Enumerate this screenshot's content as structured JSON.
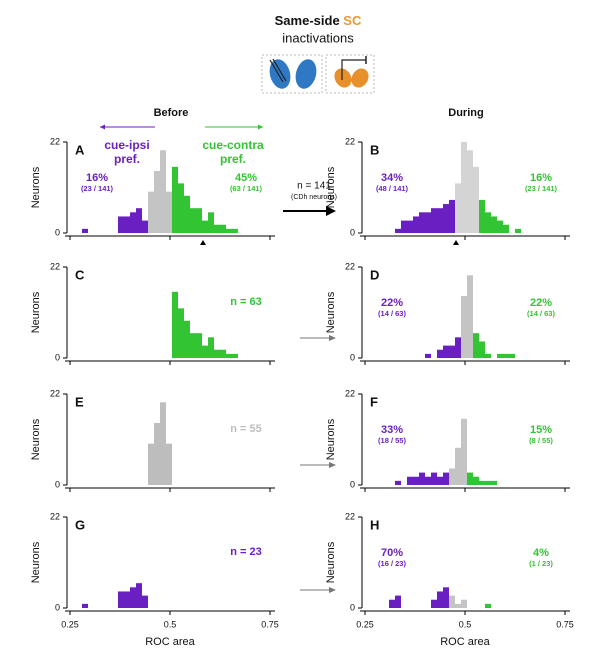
{
  "header": {
    "title": "Same-side ",
    "title_highlight": "SC",
    "subtitle": "inactivations",
    "columns": [
      "Before",
      "During"
    ],
    "arrow_label": "n = 141",
    "arrow_sublabel": "(CDh neurons)"
  },
  "chart_data": [
    {
      "type": "histogram",
      "panel": "A",
      "ylabel": "Neurons",
      "xlim": [
        0.25,
        0.75
      ],
      "ylim": [
        0,
        22
      ],
      "xticks": [
        0.25,
        0.5,
        0.75
      ],
      "yticks": [
        0,
        22
      ],
      "marker": 0.5825,
      "annotations": [
        [
          "cue-ipsi",
          "pref."
        ],
        [
          "cue-contra",
          "pref."
        ]
      ],
      "bins": [
        0.28,
        0.295,
        0.31,
        0.325,
        0.34,
        0.355,
        0.37,
        0.385,
        0.4,
        0.415,
        0.43,
        0.445,
        0.46,
        0.475,
        0.49,
        0.505,
        0.52,
        0.535,
        0.55,
        0.565,
        0.58,
        0.595,
        0.61,
        0.625,
        0.64,
        0.655,
        0.67,
        0.685
      ],
      "series": [
        {
          "color": "#6a1fc2",
          "label": "16%",
          "sublabel": "(23 / 141)",
          "values": [
            1,
            0,
            0,
            0,
            0,
            0,
            4,
            4,
            5,
            6,
            3,
            0,
            0,
            0,
            0,
            0,
            0,
            0,
            0,
            0,
            0,
            0,
            0,
            0,
            0,
            0,
            0
          ]
        },
        {
          "color": "#c4c4c4",
          "values": [
            0,
            0,
            0,
            0,
            0,
            0,
            0,
            0,
            0,
            0,
            0,
            10,
            15,
            20,
            10,
            0,
            0,
            0,
            0,
            0,
            0,
            0,
            0,
            0,
            0,
            0,
            0
          ]
        },
        {
          "color": "#33c433",
          "label": "45%",
          "sublabel": "(63 / 141)",
          "values": [
            0,
            0,
            0,
            0,
            0,
            0,
            0,
            0,
            0,
            0,
            0,
            0,
            0,
            0,
            0,
            16,
            12,
            9,
            6,
            6,
            3,
            5,
            2,
            2,
            1,
            1,
            0
          ]
        }
      ]
    },
    {
      "type": "histogram",
      "panel": "B",
      "ylabel": "Neurons",
      "xlim": [
        0.25,
        0.75
      ],
      "ylim": [
        0,
        22
      ],
      "xticks": [
        0.25,
        0.5,
        0.75
      ],
      "yticks": [
        0,
        22
      ],
      "marker": 0.4775,
      "bins": [
        0.28,
        0.295,
        0.31,
        0.325,
        0.34,
        0.355,
        0.37,
        0.385,
        0.4,
        0.415,
        0.43,
        0.445,
        0.46,
        0.475,
        0.49,
        0.505,
        0.52,
        0.535,
        0.55,
        0.565,
        0.58,
        0.595,
        0.61,
        0.625,
        0.64,
        0.655,
        0.67,
        0.685
      ],
      "series": [
        {
          "color": "#6a1fc2",
          "label": "34%",
          "sublabel": "(48 / 141)",
          "values": [
            0,
            0,
            0,
            1,
            3,
            3,
            4,
            5,
            5,
            6,
            6,
            7,
            8,
            0,
            0,
            0,
            0,
            0,
            0,
            0,
            0,
            0,
            0,
            0,
            0,
            0,
            0
          ]
        },
        {
          "color": "#d4d4d4",
          "values": [
            0,
            0,
            0,
            0,
            0,
            0,
            0,
            0,
            0,
            0,
            0,
            0,
            0,
            12,
            22,
            20,
            16,
            0,
            0,
            0,
            0,
            0,
            0,
            0,
            0,
            0,
            0
          ]
        },
        {
          "color": "#33c433",
          "label": "16%",
          "sublabel": "(23 / 141)",
          "values": [
            0,
            0,
            0,
            0,
            0,
            0,
            0,
            0,
            0,
            0,
            0,
            0,
            0,
            0,
            0,
            0,
            0,
            8,
            5,
            4,
            3,
            2,
            0,
            1,
            0,
            0,
            0
          ]
        }
      ]
    },
    {
      "type": "histogram",
      "panel": "C",
      "ylabel": "Neurons",
      "xlim": [
        0.25,
        0.75
      ],
      "ylim": [
        0,
        22
      ],
      "xticks": [
        0.25,
        0.5,
        0.75
      ],
      "yticks": [
        0,
        22
      ],
      "bins": [
        0.28,
        0.295,
        0.31,
        0.325,
        0.34,
        0.355,
        0.37,
        0.385,
        0.4,
        0.415,
        0.43,
        0.445,
        0.46,
        0.475,
        0.49,
        0.505,
        0.52,
        0.535,
        0.55,
        0.565,
        0.58,
        0.595,
        0.61,
        0.625,
        0.64,
        0.655,
        0.67,
        0.685
      ],
      "series": [
        {
          "color": "#33c433",
          "label": "n = 63",
          "values": [
            0,
            0,
            0,
            0,
            0,
            0,
            0,
            0,
            0,
            0,
            0,
            0,
            0,
            0,
            0,
            16,
            12,
            9,
            6,
            6,
            3,
            5,
            2,
            2,
            1,
            1,
            0
          ]
        }
      ]
    },
    {
      "type": "histogram",
      "panel": "D",
      "ylabel": "Neurons",
      "xlim": [
        0.25,
        0.75
      ],
      "ylim": [
        0,
        22
      ],
      "xticks": [
        0.25,
        0.5,
        0.75
      ],
      "yticks": [
        0,
        22
      ],
      "bins": [
        0.28,
        0.295,
        0.31,
        0.325,
        0.34,
        0.355,
        0.37,
        0.385,
        0.4,
        0.415,
        0.43,
        0.445,
        0.46,
        0.475,
        0.49,
        0.505,
        0.52,
        0.535,
        0.55,
        0.565,
        0.58,
        0.595,
        0.61,
        0.625,
        0.64,
        0.655,
        0.67,
        0.685
      ],
      "series": [
        {
          "color": "#6a1fc2",
          "label": "22%",
          "sublabel": "(14 / 63)",
          "values": [
            0,
            0,
            0,
            0,
            0,
            0,
            0,
            0,
            1,
            0,
            2,
            3,
            3,
            5,
            0,
            0,
            0,
            0,
            0,
            0,
            0,
            0,
            0,
            0,
            0,
            0,
            0
          ]
        },
        {
          "color": "#c4c4c4",
          "values": [
            0,
            0,
            0,
            0,
            0,
            0,
            0,
            0,
            0,
            0,
            0,
            0,
            0,
            0,
            15,
            20,
            0,
            0,
            0,
            0,
            0,
            0,
            0,
            0,
            0,
            0,
            0
          ]
        },
        {
          "color": "#33c433",
          "label": "22%",
          "sublabel": "(14 / 63)",
          "values": [
            0,
            0,
            0,
            0,
            0,
            0,
            0,
            0,
            0,
            0,
            0,
            0,
            0,
            0,
            0,
            0,
            6,
            4,
            1,
            0,
            1,
            1,
            1,
            0,
            0,
            0,
            0
          ]
        }
      ]
    },
    {
      "type": "histogram",
      "panel": "E",
      "ylabel": "Neurons",
      "xlim": [
        0.25,
        0.75
      ],
      "ylim": [
        0,
        22
      ],
      "xticks": [
        0.25,
        0.5,
        0.75
      ],
      "yticks": [
        0,
        22
      ],
      "bins": [
        0.28,
        0.295,
        0.31,
        0.325,
        0.34,
        0.355,
        0.37,
        0.385,
        0.4,
        0.415,
        0.43,
        0.445,
        0.46,
        0.475,
        0.49,
        0.505,
        0.52,
        0.535,
        0.55,
        0.565,
        0.58,
        0.595,
        0.61,
        0.625,
        0.64,
        0.655,
        0.67,
        0.685
      ],
      "series": [
        {
          "color": "#bdbdbd",
          "label": "n = 55",
          "values": [
            0,
            0,
            0,
            0,
            0,
            0,
            0,
            0,
            0,
            0,
            0,
            10,
            15,
            20,
            10,
            0,
            0,
            0,
            0,
            0,
            0,
            0,
            0,
            0,
            0,
            0,
            0
          ]
        }
      ]
    },
    {
      "type": "histogram",
      "panel": "F",
      "ylabel": "Neurons",
      "xlim": [
        0.25,
        0.75
      ],
      "ylim": [
        0,
        22
      ],
      "xticks": [
        0.25,
        0.5,
        0.75
      ],
      "yticks": [
        0,
        22
      ],
      "bins": [
        0.28,
        0.295,
        0.31,
        0.325,
        0.34,
        0.355,
        0.37,
        0.385,
        0.4,
        0.415,
        0.43,
        0.445,
        0.46,
        0.475,
        0.49,
        0.505,
        0.52,
        0.535,
        0.55,
        0.565,
        0.58,
        0.595,
        0.61,
        0.625,
        0.64,
        0.655,
        0.67,
        0.685
      ],
      "series": [
        {
          "color": "#6a1fc2",
          "label": "33%",
          "sublabel": "(18 / 55)",
          "values": [
            0,
            0,
            0,
            1,
            0,
            2,
            2,
            3,
            2,
            3,
            2,
            3,
            0,
            0,
            0,
            0,
            0,
            0,
            0,
            0,
            0,
            0,
            0,
            0,
            0,
            0,
            0
          ]
        },
        {
          "color": "#c4c4c4",
          "values": [
            0,
            0,
            0,
            0,
            0,
            0,
            0,
            0,
            0,
            0,
            0,
            0,
            4,
            9,
            16,
            0,
            0,
            0,
            0,
            0,
            0,
            0,
            0,
            0,
            0,
            0,
            0
          ]
        },
        {
          "color": "#33c433",
          "label": "15%",
          "sublabel": "(8 / 55)",
          "values": [
            0,
            0,
            0,
            0,
            0,
            0,
            0,
            0,
            0,
            0,
            0,
            0,
            0,
            0,
            0,
            3,
            2,
            1,
            1,
            1,
            0,
            0,
            0,
            0,
            0,
            0,
            0
          ]
        }
      ]
    },
    {
      "type": "histogram",
      "panel": "G",
      "ylabel": "Neurons",
      "xlabel": "ROC area",
      "xlim": [
        0.25,
        0.75
      ],
      "ylim": [
        0,
        22
      ],
      "xticks": [
        0.25,
        0.5,
        0.75
      ],
      "yticks": [
        0,
        22
      ],
      "bins": [
        0.28,
        0.295,
        0.31,
        0.325,
        0.34,
        0.355,
        0.37,
        0.385,
        0.4,
        0.415,
        0.43,
        0.445,
        0.46,
        0.475,
        0.49,
        0.505,
        0.52,
        0.535,
        0.55,
        0.565,
        0.58,
        0.595,
        0.61,
        0.625,
        0.64,
        0.655,
        0.67,
        0.685
      ],
      "series": [
        {
          "color": "#6a1fc2",
          "label": "n = 23",
          "values": [
            1,
            0,
            0,
            0,
            0,
            0,
            4,
            4,
            5,
            6,
            3,
            0,
            0,
            0,
            0,
            0,
            0,
            0,
            0,
            0,
            0,
            0,
            0,
            0,
            0,
            0,
            0
          ]
        }
      ]
    },
    {
      "type": "histogram",
      "panel": "H",
      "ylabel": "Neurons",
      "xlabel": "ROC area",
      "xlim": [
        0.25,
        0.75
      ],
      "ylim": [
        0,
        22
      ],
      "xticks": [
        0.25,
        0.5,
        0.75
      ],
      "yticks": [
        0,
        22
      ],
      "bins": [
        0.28,
        0.295,
        0.31,
        0.325,
        0.34,
        0.355,
        0.37,
        0.385,
        0.4,
        0.415,
        0.43,
        0.445,
        0.46,
        0.475,
        0.49,
        0.505,
        0.52,
        0.535,
        0.55,
        0.565,
        0.58,
        0.595,
        0.61,
        0.625,
        0.64,
        0.655,
        0.67,
        0.685
      ],
      "series": [
        {
          "color": "#6a1fc2",
          "label": "70%",
          "sublabel": "(16 / 23)",
          "values": [
            0,
            0,
            2,
            3,
            0,
            0,
            0,
            0,
            0,
            2,
            4,
            5,
            0,
            0,
            0,
            0,
            0,
            0,
            0,
            0,
            0,
            0,
            0,
            0,
            0,
            0,
            0
          ]
        },
        {
          "color": "#c4c4c4",
          "values": [
            0,
            0,
            0,
            0,
            0,
            0,
            0,
            0,
            0,
            0,
            0,
            0,
            3,
            1,
            2,
            0,
            0,
            0,
            0,
            0,
            0,
            0,
            0,
            0,
            0,
            0,
            0
          ]
        },
        {
          "color": "#33c433",
          "label": "4%",
          "sublabel": "(1 / 23)",
          "values": [
            0,
            0,
            0,
            0,
            0,
            0,
            0,
            0,
            0,
            0,
            0,
            0,
            0,
            0,
            0,
            0,
            0,
            0,
            1,
            0,
            0,
            0,
            0,
            0,
            0,
            0,
            0
          ]
        }
      ]
    }
  ]
}
